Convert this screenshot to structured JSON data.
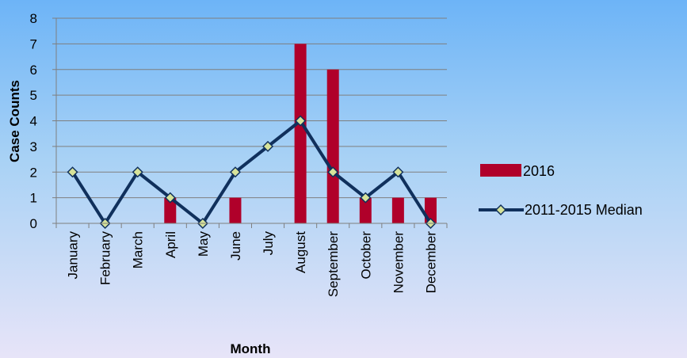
{
  "chart_data": {
    "type": "bar",
    "categories": [
      "January",
      "February",
      "March",
      "April",
      "May",
      "June",
      "July",
      "August",
      "September",
      "October",
      "November",
      "December"
    ],
    "series": [
      {
        "name": "2016",
        "type": "bar",
        "color": "#b0002a",
        "values": [
          0,
          0,
          0,
          1,
          0,
          1,
          0,
          7,
          6,
          1,
          1,
          1
        ]
      },
      {
        "name": "2011-2015 Median",
        "type": "line",
        "color": "#10305c",
        "marker_color": "#d7e39a",
        "values": [
          2,
          0,
          2,
          1,
          0,
          2,
          3,
          4,
          2,
          1,
          2,
          0
        ]
      }
    ],
    "xlabel": "Month",
    "ylabel": "Case Counts",
    "ylim": [
      0,
      8
    ],
    "yticks": [
      0,
      1,
      2,
      3,
      4,
      5,
      6,
      7,
      8
    ],
    "grid": true,
    "legend_position": "right"
  }
}
